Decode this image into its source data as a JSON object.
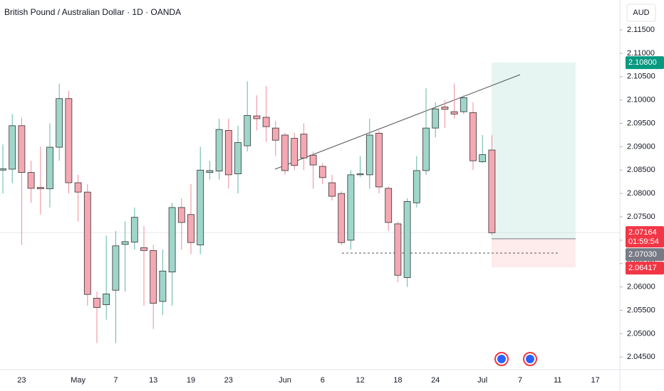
{
  "chart_data": {
    "type": "candlestick",
    "title": "British Pound / Australian Dollar · 1D · OANDA",
    "currency": "AUD",
    "categories": [
      null,
      null,
      "23",
      null,
      null,
      null,
      null,
      null,
      "May",
      null,
      null,
      null,
      "7",
      null,
      null,
      null,
      "13",
      null,
      null,
      null,
      "19",
      null,
      null,
      null,
      "23",
      null,
      null,
      null,
      null,
      null,
      "Jun",
      null,
      null,
      null,
      "6",
      null,
      null,
      null,
      "12",
      null,
      null,
      null,
      "18",
      null,
      null,
      null,
      "24",
      null,
      null,
      null,
      null,
      "Jul",
      null,
      null,
      null,
      "7",
      null,
      null,
      null,
      "11",
      null,
      null,
      null,
      "17",
      null
    ],
    "open": [
      2.085,
      2.0852,
      2.0945,
      2.0845,
      2.0813,
      2.081,
      2.0899,
      2.1003,
      2.0823,
      2.0803,
      2.0576,
      2.0562,
      2.0593,
      2.0691,
      2.0696,
      2.0684,
      2.0678,
      2.0569,
      2.0632,
      2.077,
      2.0755,
      2.069,
      2.0845,
      2.0848,
      2.0935,
      2.0842,
      2.0902,
      2.0966,
      2.0963,
      2.094,
      2.0925,
      2.0918,
      2.0927,
      2.0882,
      2.0858,
      2.0823,
      2.08,
      2.07,
      2.084,
      2.084,
      2.0929,
      2.0811,
      2.0735,
      2.062,
      2.078,
      2.0849,
      2.094,
      2.0985,
      2.0975,
      2.0975,
      2.0973,
      2.0868,
      2.0893,
      null,
      null,
      null,
      null,
      null,
      null,
      null,
      null,
      null,
      null,
      null,
      null
    ],
    "high": [
      2.0905,
      2.097,
      2.0962,
      2.087,
      2.09,
      2.095,
      2.1035,
      2.102,
      2.084,
      2.082,
      2.059,
      2.071,
      2.072,
      2.074,
      2.077,
      2.073,
      2.069,
      2.068,
      2.078,
      2.079,
      2.082,
      2.09,
      2.087,
      2.096,
      2.096,
      2.0945,
      2.104,
      2.101,
      2.103,
      2.0955,
      2.093,
      2.093,
      2.095,
      2.089,
      2.0865,
      2.084,
      2.0805,
      2.085,
      2.088,
      2.096,
      2.0935,
      2.0815,
      2.074,
      2.079,
      2.088,
      2.1025,
      2.0995,
      2.1,
      2.1035,
      2.101,
      2.0995,
      2.0925,
      2.0925,
      null,
      null,
      null,
      null,
      null,
      null,
      null,
      null,
      null,
      null,
      null,
      null
    ],
    "low": [
      2.08,
      2.0822,
      2.069,
      2.078,
      2.0755,
      2.077,
      2.087,
      2.08,
      2.074,
      2.056,
      2.048,
      2.053,
      2.048,
      2.059,
      2.068,
      2.056,
      2.051,
      2.054,
      2.056,
      2.068,
      2.067,
      2.067,
      2.083,
      2.083,
      2.081,
      2.08,
      2.089,
      2.0935,
      2.091,
      2.088,
      2.084,
      2.085,
      2.085,
      2.081,
      2.082,
      2.0785,
      2.069,
      2.068,
      2.0835,
      2.081,
      2.08,
      2.072,
      2.061,
      2.06,
      2.077,
      2.084,
      2.092,
      2.094,
      2.096,
      2.097,
      2.085,
      2.0865,
      2.071,
      null,
      null,
      null,
      null,
      null,
      null,
      null,
      null,
      null,
      null,
      null,
      null
    ],
    "close": [
      2.0853,
      2.0945,
      2.0845,
      2.0811,
      2.081,
      2.0899,
      2.1003,
      2.0823,
      2.0803,
      2.0584,
      2.0556,
      2.0585,
      2.0688,
      2.0697,
      2.0749,
      2.0678,
      2.0565,
      2.0634,
      2.077,
      2.0738,
      2.0695,
      2.085,
      2.0849,
      2.0937,
      2.084,
      2.0909,
      2.0967,
      2.096,
      2.0943,
      2.0914,
      2.0849,
      2.086,
      2.0876,
      2.0861,
      2.0834,
      2.0794,
      2.0695,
      2.084,
      2.0842,
      2.0925,
      2.0814,
      2.0738,
      2.0625,
      2.0783,
      2.0849,
      2.094,
      2.0981,
      2.098,
      2.097,
      2.1005,
      2.087,
      2.0883,
      2.0716,
      null,
      null,
      null,
      null,
      null,
      null,
      null,
      null,
      null,
      null,
      null,
      null
    ],
    "up_color": "#9fd6ca",
    "up_wick": "#5fb8a6",
    "down_color": "#f5a8b3",
    "down_wick": "#f08b9a",
    "ylim": [
      2.0423,
      2.1214
    ],
    "yticks": [
      {
        "value": 2.045,
        "label": "2.04500"
      },
      {
        "value": 2.05,
        "label": "2.05000"
      },
      {
        "value": 2.055,
        "label": "2.05500"
      },
      {
        "value": 2.06,
        "label": "2.06000"
      },
      {
        "value": 2.065,
        "label": "2.06500"
      },
      {
        "value": 2.07,
        "label": "2.07000"
      },
      {
        "value": 2.075,
        "label": "2.07500"
      },
      {
        "value": 2.08,
        "label": "2.08000"
      },
      {
        "value": 2.085,
        "label": "2.08500"
      },
      {
        "value": 2.09,
        "label": "2.09000"
      },
      {
        "value": 2.095,
        "label": "2.09500"
      },
      {
        "value": 2.1,
        "label": "2.10000"
      },
      {
        "value": 2.105,
        "label": "2.10500"
      },
      {
        "value": 2.11,
        "label": "2.11000"
      },
      {
        "value": 2.115,
        "label": "2.11500"
      }
    ],
    "grid": false,
    "last_price": {
      "value": 2.07164,
      "label": "2.07164",
      "countdown": "01:59:54",
      "color": "#f23645"
    },
    "position": {
      "target": {
        "value": 2.108,
        "label": "2.10800",
        "color": "#089981"
      },
      "entry": {
        "value": 2.0703,
        "label": "2.07030",
        "color": "#787b86"
      },
      "stop": {
        "value": 2.06417,
        "label": "2.06417",
        "color": "#f23645"
      }
    }
  }
}
